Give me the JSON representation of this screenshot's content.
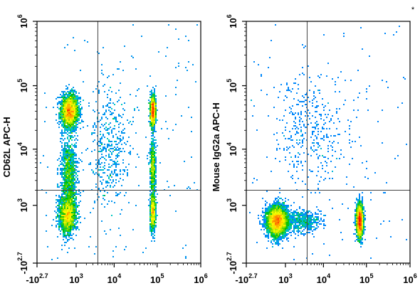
{
  "chart_data": [
    {
      "type": "scatter",
      "subtype": "flow-cytometry-density-dot-plot",
      "xlabel": "",
      "ylabel": "CD62L APC-H",
      "x_scale": "biexponential",
      "y_scale": "biexponential",
      "xlim": [
        -500,
        1000000
      ],
      "ylim": [
        -500,
        1000000
      ],
      "x_ticks": [
        {
          "value": -500,
          "base": "-10",
          "exp": "2.7"
        },
        {
          "value": 1000,
          "base": "10",
          "exp": "3"
        },
        {
          "value": 10000,
          "base": "10",
          "exp": "4"
        },
        {
          "value": 100000,
          "base": "10",
          "exp": "5"
        },
        {
          "value": 1000000,
          "base": "10",
          "exp": "6"
        }
      ],
      "y_ticks": [
        {
          "value": -500,
          "base": "-10",
          "exp": "2.7"
        },
        {
          "value": 1000,
          "base": "10",
          "exp": "3"
        },
        {
          "value": 10000,
          "base": "10",
          "exp": "4"
        },
        {
          "value": 100000,
          "base": "10",
          "exp": "5"
        },
        {
          "value": 1000000,
          "base": "10",
          "exp": "6"
        }
      ],
      "gate_x": 4000,
      "gate_y": 2000,
      "populations": [
        {
          "x": 600,
          "y": 40000,
          "sx": 0.22,
          "sy": 0.28,
          "weight": 0.3
        },
        {
          "x": 500,
          "y": 600,
          "sx": 0.22,
          "sy": 0.33,
          "weight": 0.22
        },
        {
          "x": 550,
          "y": 4000,
          "sx": 0.2,
          "sy": 0.6,
          "weight": 0.13
        },
        {
          "x": 80000,
          "y": 40000,
          "sx": 0.07,
          "sy": 0.25,
          "weight": 0.14
        },
        {
          "x": 80000,
          "y": 700,
          "sx": 0.07,
          "sy": 0.33,
          "weight": 0.09
        },
        {
          "x": 80000,
          "y": 5000,
          "sx": 0.07,
          "sy": 0.55,
          "weight": 0.07
        },
        {
          "x": 8000,
          "y": 10000,
          "sx": 0.55,
          "sy": 1.1,
          "weight": 0.05
        }
      ]
    },
    {
      "type": "scatter",
      "subtype": "flow-cytometry-density-dot-plot",
      "xlabel": "",
      "ylabel": "Mouse IgG2a APC-H",
      "x_scale": "biexponential",
      "y_scale": "biexponential",
      "xlim": [
        -500,
        1000000
      ],
      "ylim": [
        -500,
        1000000
      ],
      "x_ticks": [
        {
          "value": -500,
          "base": "-10",
          "exp": "2.7"
        },
        {
          "value": 1000,
          "base": "10",
          "exp": "3"
        },
        {
          "value": 10000,
          "base": "10",
          "exp": "4"
        },
        {
          "value": 100000,
          "base": "10",
          "exp": "5"
        },
        {
          "value": 1000000,
          "base": "10",
          "exp": "6"
        }
      ],
      "y_ticks": [
        {
          "value": -500,
          "base": "-10",
          "exp": "2.7"
        },
        {
          "value": 1000,
          "base": "10",
          "exp": "3"
        },
        {
          "value": 10000,
          "base": "10",
          "exp": "4"
        },
        {
          "value": 100000,
          "base": "10",
          "exp": "5"
        },
        {
          "value": 1000000,
          "base": "10",
          "exp": "6"
        }
      ],
      "gate_x": 4000,
      "gate_y": 2000,
      "populations": [
        {
          "x": 500,
          "y": 400,
          "sx": 0.25,
          "sy": 0.25,
          "weight": 0.55
        },
        {
          "x": 70000,
          "y": 400,
          "sx": 0.08,
          "sy": 0.28,
          "weight": 0.35
        },
        {
          "x": 3000,
          "y": 400,
          "sx": 0.5,
          "sy": 0.18,
          "weight": 0.06
        },
        {
          "x": 5000,
          "y": 20000,
          "sx": 0.9,
          "sy": 1.0,
          "weight": 0.04
        }
      ]
    }
  ],
  "corner_mark": "*",
  "colors": {
    "density_scale": [
      "#0000ff",
      "#0080ff",
      "#00c8c8",
      "#00c000",
      "#a0e000",
      "#ffff00",
      "#ff8000",
      "#ff0000"
    ],
    "axes": "#000000",
    "gate_lines": "#444444"
  }
}
